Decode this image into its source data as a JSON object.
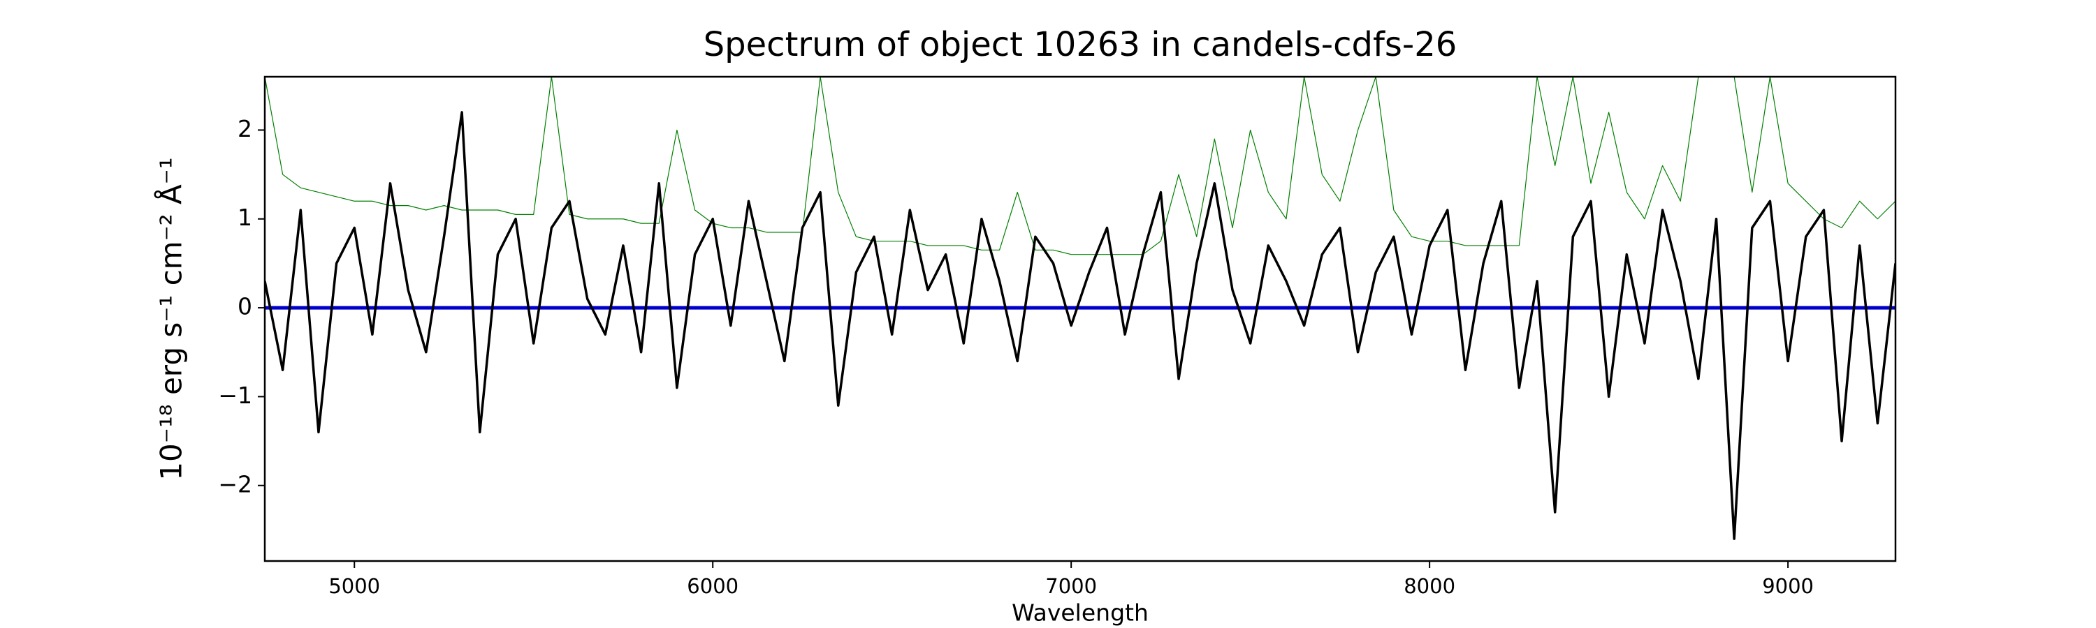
{
  "chart_data": {
    "type": "line",
    "title": "Spectrum of object 10263 in candels-cdfs-26",
    "xlabel": "Wavelength",
    "ylabel": "10⁻¹⁸ erg s⁻¹ cm⁻² Å⁻¹",
    "xlim": [
      4750,
      9300
    ],
    "ylim": [
      -2.85,
      2.6
    ],
    "xticks": [
      5000,
      6000,
      7000,
      8000,
      9000
    ],
    "yticks": [
      {
        "value": -2,
        "label": "−2"
      },
      {
        "value": -1,
        "label": "−1"
      },
      0,
      1,
      2
    ],
    "x": [
      4750,
      4800,
      4850,
      4900,
      4950,
      5000,
      5050,
      5100,
      5150,
      5200,
      5250,
      5300,
      5350,
      5400,
      5450,
      5500,
      5550,
      5600,
      5650,
      5700,
      5750,
      5800,
      5850,
      5900,
      5950,
      6000,
      6050,
      6100,
      6150,
      6200,
      6250,
      6300,
      6350,
      6400,
      6450,
      6500,
      6550,
      6600,
      6650,
      6700,
      6750,
      6800,
      6850,
      6900,
      6950,
      7000,
      7050,
      7100,
      7150,
      7200,
      7250,
      7300,
      7350,
      7400,
      7450,
      7500,
      7550,
      7600,
      7650,
      7700,
      7750,
      7800,
      7850,
      7900,
      7950,
      8000,
      8050,
      8100,
      8150,
      8200,
      8250,
      8300,
      8350,
      8400,
      8450,
      8500,
      8550,
      8600,
      8650,
      8700,
      8750,
      8800,
      8850,
      8900,
      8950,
      9000,
      9050,
      9100,
      9150,
      9200,
      9250,
      9300
    ],
    "series": [
      {
        "color": "#008000",
        "width": 1.2,
        "values": [
          2.6,
          1.5,
          1.35,
          1.3,
          1.25,
          1.2,
          1.2,
          1.15,
          1.15,
          1.1,
          1.15,
          1.1,
          1.1,
          1.1,
          1.05,
          1.05,
          2.6,
          1.05,
          1.0,
          1.0,
          1.0,
          0.95,
          0.95,
          2.0,
          1.1,
          0.95,
          0.9,
          0.9,
          0.85,
          0.85,
          0.85,
          2.6,
          1.3,
          0.8,
          0.75,
          0.75,
          0.75,
          0.7,
          0.7,
          0.7,
          0.65,
          0.65,
          1.3,
          0.65,
          0.65,
          0.6,
          0.6,
          0.6,
          0.6,
          0.6,
          0.75,
          1.5,
          0.8,
          1.9,
          0.9,
          2.0,
          1.3,
          1.0,
          2.6,
          1.5,
          1.2,
          2.0,
          2.6,
          1.1,
          0.8,
          0.75,
          0.75,
          0.7,
          0.7,
          0.7,
          0.7,
          2.6,
          1.6,
          2.6,
          1.4,
          2.2,
          1.3,
          1.0,
          1.6,
          1.2,
          2.6,
          2.6,
          2.6,
          1.3,
          2.6,
          1.4,
          1.2,
          1.0,
          0.9,
          1.2,
          1.0,
          1.2
        ]
      },
      {
        "color": "#0000cc",
        "width": 5,
        "values": [
          0,
          0,
          0,
          0,
          0,
          0,
          0,
          0,
          0,
          0,
          0,
          0,
          0,
          0,
          0,
          0,
          0,
          0,
          0,
          0,
          0,
          0,
          0,
          0,
          0,
          0,
          0,
          0,
          0,
          0,
          0,
          0,
          0,
          0,
          0,
          0,
          0,
          0,
          0,
          0,
          0,
          0,
          0,
          0,
          0,
          0,
          0,
          0,
          0,
          0,
          0,
          0,
          0,
          0,
          0,
          0,
          0,
          0,
          0,
          0,
          0,
          0,
          0,
          0,
          0,
          0,
          0,
          0,
          0,
          0,
          0,
          0,
          0,
          0,
          0,
          0,
          0,
          0,
          0,
          0,
          0,
          0,
          0,
          0,
          0,
          0,
          0,
          0,
          0,
          0,
          0,
          0
        ]
      },
      {
        "color": "#000000",
        "width": 3.5,
        "values": [
          0.3,
          -0.7,
          1.1,
          -1.4,
          0.5,
          0.9,
          -0.3,
          1.4,
          0.2,
          -0.5,
          0.8,
          2.2,
          -1.4,
          0.6,
          1.0,
          -0.4,
          0.9,
          1.2,
          0.1,
          -0.3,
          0.7,
          -0.5,
          1.4,
          -0.9,
          0.6,
          1.0,
          -0.2,
          1.2,
          0.3,
          -0.6,
          0.9,
          1.3,
          -1.1,
          0.4,
          0.8,
          -0.3,
          1.1,
          0.2,
          0.6,
          -0.4,
          1.0,
          0.3,
          -0.6,
          0.8,
          0.5,
          -0.2,
          0.4,
          0.9,
          -0.3,
          0.6,
          1.3,
          -0.8,
          0.5,
          1.4,
          0.2,
          -0.4,
          0.7,
          0.3,
          -0.2,
          0.6,
          0.9,
          -0.5,
          0.4,
          0.8,
          -0.3,
          0.7,
          1.1,
          -0.7,
          0.5,
          1.2,
          -0.9,
          0.3,
          -2.3,
          0.8,
          1.2,
          -1.0,
          0.6,
          -0.4,
          1.1,
          0.3,
          -0.8,
          1.0,
          -2.6,
          0.9,
          1.2,
          -0.6,
          0.8,
          1.1,
          -1.5,
          0.7,
          -1.3,
          0.5
        ]
      }
    ]
  }
}
